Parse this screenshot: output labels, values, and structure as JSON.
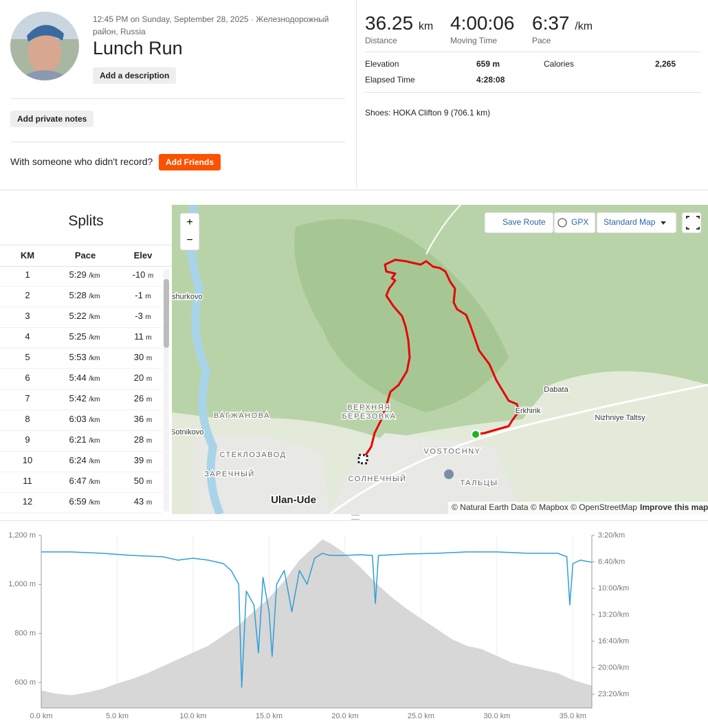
{
  "header": {
    "timestamp": "12:45 PM on Sunday, September 28, 2025 · Железнодорожный район, Russia",
    "title": "Lunch Run",
    "add_description": "Add a description",
    "add_private_notes": "Add private notes",
    "friends_prompt": "With someone who didn't record?",
    "add_friends": "Add Friends"
  },
  "stats": {
    "primary": [
      {
        "value": "36.25",
        "unit": "km",
        "label": "Distance"
      },
      {
        "value": "4:00:06",
        "label": "Moving Time"
      },
      {
        "value": "6:37",
        "unit": "/km",
        "label": "Pace"
      }
    ],
    "details": [
      {
        "label": "Elevation",
        "value": "659 m"
      },
      {
        "label": "Calories",
        "value": "2,265"
      },
      {
        "label": "Elapsed Time",
        "value": "4:28:08"
      }
    ],
    "shoes": "Shoes: HOKA Clifton 9 (706.1 km)"
  },
  "splits": {
    "title": "Splits",
    "columns": [
      "KM",
      "Pace",
      "Elev"
    ],
    "pace_unit": "/km",
    "elev_unit": "m",
    "rows": [
      [
        1,
        "5:29",
        -10
      ],
      [
        2,
        "5:28",
        -1
      ],
      [
        3,
        "5:22",
        -3
      ],
      [
        4,
        "5:25",
        11
      ],
      [
        5,
        "5:53",
        30
      ],
      [
        6,
        "5:44",
        20
      ],
      [
        7,
        "5:42",
        26
      ],
      [
        8,
        "6:03",
        36
      ],
      [
        9,
        "6:21",
        28
      ],
      [
        10,
        "6:24",
        39
      ],
      [
        11,
        "6:47",
        50
      ],
      [
        12,
        "6:59",
        43
      ]
    ]
  },
  "map": {
    "controls": {
      "zoom_in": "+",
      "zoom_out": "−",
      "save_route": "Save Route",
      "gpx": "GPX",
      "map_style": "Standard Map"
    },
    "labels": [
      "shurkovo",
      "ВАГЖАНОВА",
      "Sotnikovo",
      "СТЕКЛОЗАВОД",
      "ЗАРЕЧНЫЙ",
      "Ulan-Ude",
      "ВЕРХНЯЯ",
      "БЕРЁЗОВКА",
      "СОЛНЕЧНЫЙ",
      "VOSTOCHNY",
      "ТАЛЬЦЫ",
      "Dabata",
      "Nizhniye Taltsy",
      "Erkhirik"
    ],
    "attribution": "© Natural Earth Data © Mapbox © OpenStreetMap",
    "improve": "Improve this map"
  },
  "chart_data": {
    "type": "area",
    "grid": true,
    "xlim": [
      0,
      36.25
    ],
    "xticks": [
      {
        "value": 0,
        "label": "0.0 km"
      },
      {
        "value": 5,
        "label": "5.0 km"
      },
      {
        "value": 10,
        "label": "10.0 km"
      },
      {
        "value": 15,
        "label": "15.0 km"
      },
      {
        "value": 20,
        "label": "20.0 km"
      },
      {
        "value": 25,
        "label": "25.0 km"
      },
      {
        "value": 30,
        "label": "30.0 km"
      },
      {
        "value": 35,
        "label": "35.0 km"
      }
    ],
    "ylim": [
      496,
      1200
    ],
    "yticks": [
      {
        "value": 600,
        "label": "600 m"
      },
      {
        "value": 800,
        "label": "800 m"
      },
      {
        "value": 1000,
        "label": "1,000 m"
      },
      {
        "value": 1200,
        "label": "1,200 m"
      }
    ],
    "y2lim": [
      1504,
      200
    ],
    "y2ticks": [
      {
        "value": 200,
        "label": "3:20/km"
      },
      {
        "value": 400,
        "label": "6:40/km"
      },
      {
        "value": 600,
        "label": "10:00/km"
      },
      {
        "value": 800,
        "label": "13:20/km"
      },
      {
        "value": 1000,
        "label": "16:40/km"
      },
      {
        "value": 1200,
        "label": "20:00/km"
      },
      {
        "value": 1400,
        "label": "23:20/km"
      }
    ],
    "series": [
      {
        "type": "area",
        "color": "#d7d7d7",
        "x": [
          0,
          1,
          2,
          3,
          4,
          5,
          6,
          7,
          8,
          9,
          10,
          11,
          12,
          13,
          14,
          15,
          16,
          17,
          18,
          18.5,
          19,
          20,
          21,
          22,
          23,
          24,
          25,
          26,
          27,
          28,
          29,
          30,
          31,
          32,
          33,
          34,
          35,
          36.25
        ],
        "values": [
          568,
          554,
          548,
          559,
          573,
          596,
          615,
          638,
          666,
          694,
          722,
          750,
          792,
          834,
          890,
          945,
          1015,
          1099,
          1155,
          1183,
          1169,
          1127,
          1071,
          1007,
          951,
          903,
          861,
          820,
          778,
          750,
          736,
          708,
          680,
          666,
          652,
          638,
          610,
          587
        ]
      },
      {
        "type": "line",
        "axis": "y2",
        "color": "#2d9fd8",
        "x": [
          0,
          2,
          4,
          6,
          8,
          9,
          10,
          11,
          12,
          12.5,
          13,
          13.2,
          13.5,
          14,
          14.3,
          14.6,
          15,
          15.2,
          15.5,
          16,
          16.5,
          17,
          17.5,
          18,
          18.5,
          19,
          20,
          21,
          21.8,
          22,
          22.2,
          24,
          26,
          28,
          30,
          32,
          34,
          34.6,
          34.8,
          35,
          35.5,
          36.25
        ],
        "values": [
          325,
          325,
          335,
          351,
          361,
          387,
          372,
          387,
          413,
          465,
          569,
          1348,
          621,
          725,
          1088,
          517,
          777,
          1114,
          569,
          465,
          777,
          465,
          569,
          372,
          335,
          351,
          351,
          346,
          351,
          714,
          351,
          340,
          335,
          325,
          325,
          335,
          335,
          361,
          725,
          413,
          387,
          403
        ]
      }
    ]
  }
}
